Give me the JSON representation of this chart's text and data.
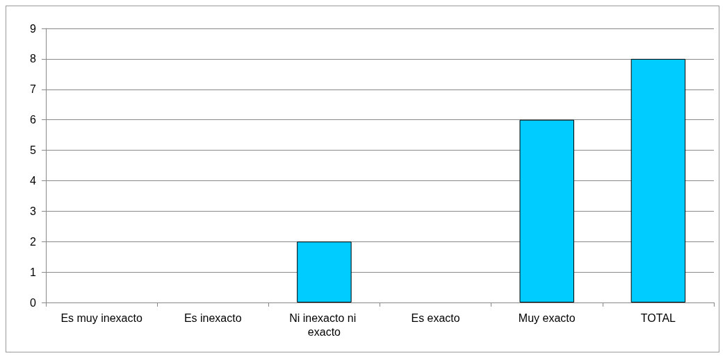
{
  "chart_data": {
    "type": "bar",
    "categories": [
      "Es muy inexacto",
      "Es inexacto",
      "Ni inexacto ni exacto",
      "Es exacto",
      "Muy exacto",
      "TOTAL"
    ],
    "values": [
      0,
      0,
      2,
      0,
      6,
      8
    ],
    "color": "#00ccff",
    "ylim": [
      0,
      9
    ],
    "yticks": [
      0,
      1,
      2,
      3,
      4,
      5,
      6,
      7,
      8,
      9
    ],
    "grid": "y"
  }
}
